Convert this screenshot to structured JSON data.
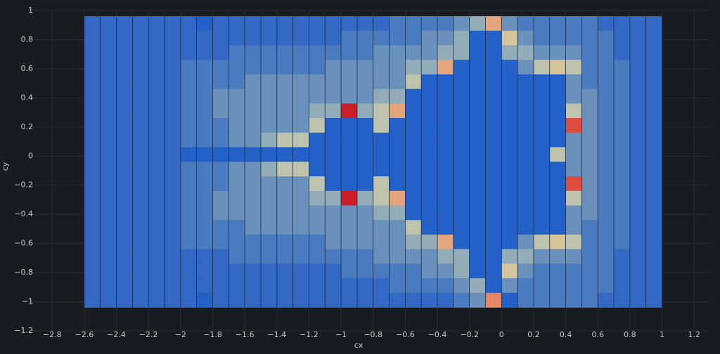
{
  "chart_data": {
    "type": "heatmap",
    "xlabel": "cx",
    "ylabel": "cy",
    "xlim": [
      -2.95,
      1.3
    ],
    "ylim": [
      -1.2,
      1.0
    ],
    "x_ticks": [
      -2.8,
      -2.6,
      -2.4,
      -2.2,
      -2,
      -1.8,
      -1.6,
      -1.4,
      -1.2,
      -1,
      -0.8,
      -0.6,
      -0.4,
      -0.2,
      0,
      0.2,
      0.4,
      0.6,
      0.8,
      1,
      1.2
    ],
    "y_ticks": [
      1,
      0.8,
      0.6,
      0.4,
      0.2,
      0,
      -0.2,
      -0.4,
      -0.6,
      -0.8,
      -1,
      -1.2
    ],
    "grid": true,
    "x_start": -2.55,
    "x_step": 0.1,
    "y_top": 0.96,
    "y_step": 0.2,
    "y_sub_rows": 20,
    "value_scale": "0 = inside set (blue) to 10 = highest (red)",
    "color_scale": [
      "#2361c9",
      "#3369c4",
      "#4a7bbe",
      "#6a91bc",
      "#93adb8",
      "#bdc3ad",
      "#d6c49a",
      "#e3a57c",
      "#e58664",
      "#dc4c40",
      "#c91d28"
    ],
    "columns": [
      {
        "x": -2.55,
        "profile": [
          1,
          1,
          1,
          1,
          1,
          1,
          1,
          1,
          1,
          1,
          1,
          1,
          1,
          1,
          1,
          1,
          1,
          1,
          1,
          1
        ]
      },
      {
        "x": -2.45,
        "profile": [
          1,
          1,
          1,
          1,
          1,
          1,
          1,
          1,
          1,
          1,
          1,
          1,
          1,
          1,
          1,
          1,
          1,
          1,
          1,
          1
        ]
      },
      {
        "x": -2.35,
        "profile": [
          1,
          1,
          1,
          1,
          1,
          1,
          1,
          1,
          1,
          1,
          1,
          1,
          1,
          1,
          1,
          1,
          1,
          1,
          1,
          1
        ]
      },
      {
        "x": -2.25,
        "profile": [
          1,
          1,
          1,
          1,
          1,
          1,
          1,
          1,
          1,
          1,
          1,
          1,
          1,
          1,
          1,
          1,
          1,
          1,
          1,
          1
        ]
      },
      {
        "x": -2.15,
        "profile": [
          1,
          1,
          1,
          1,
          1,
          1,
          1,
          1,
          1,
          1,
          1,
          1,
          1,
          1,
          1,
          1,
          1,
          1,
          1,
          1
        ]
      },
      {
        "x": -2.05,
        "profile": [
          1,
          1,
          1,
          1,
          1,
          1,
          1,
          1,
          1,
          1,
          1,
          1,
          1,
          1,
          1,
          1,
          1,
          1,
          1,
          1
        ]
      },
      {
        "x": -1.95,
        "profile": [
          1,
          1,
          1,
          2,
          2,
          2,
          2,
          2,
          2,
          0,
          2,
          2,
          2,
          2,
          2,
          2,
          1,
          1,
          1,
          1
        ]
      },
      {
        "x": -1.85,
        "profile": [
          0,
          1,
          1,
          2,
          2,
          2,
          2,
          2,
          2,
          0,
          2,
          2,
          2,
          2,
          2,
          2,
          1,
          1,
          1,
          0
        ]
      },
      {
        "x": -1.75,
        "profile": [
          1,
          1,
          1,
          2,
          2,
          3,
          3,
          2,
          2,
          0,
          2,
          2,
          3,
          3,
          2,
          2,
          1,
          1,
          1,
          1
        ]
      },
      {
        "x": -1.65,
        "profile": [
          1,
          1,
          2,
          2,
          2,
          3,
          3,
          3,
          3,
          0,
          3,
          3,
          3,
          3,
          2,
          2,
          2,
          1,
          1,
          1
        ]
      },
      {
        "x": -1.55,
        "profile": [
          1,
          1,
          2,
          2,
          3,
          3,
          3,
          3,
          3,
          0,
          3,
          3,
          3,
          3,
          3,
          2,
          2,
          1,
          1,
          1
        ]
      },
      {
        "x": -1.45,
        "profile": [
          1,
          1,
          2,
          2,
          3,
          3,
          3,
          3,
          4,
          0,
          4,
          3,
          3,
          3,
          3,
          2,
          2,
          1,
          1,
          1
        ]
      },
      {
        "x": -1.35,
        "profile": [
          1,
          1,
          2,
          2,
          3,
          3,
          3,
          3,
          5,
          0,
          5,
          3,
          3,
          3,
          3,
          2,
          2,
          1,
          1,
          1
        ]
      },
      {
        "x": -1.25,
        "profile": [
          1,
          1,
          2,
          2,
          3,
          3,
          3,
          3,
          5,
          0,
          5,
          3,
          3,
          3,
          3,
          2,
          2,
          1,
          1,
          1
        ]
      },
      {
        "x": -1.15,
        "profile": [
          1,
          1,
          2,
          2,
          3,
          3,
          4,
          5,
          0,
          0,
          0,
          5,
          4,
          3,
          3,
          2,
          2,
          1,
          1,
          1
        ]
      },
      {
        "x": -1.05,
        "profile": [
          1,
          1,
          2,
          3,
          3,
          3,
          4,
          0,
          0,
          0,
          0,
          0,
          4,
          3,
          3,
          3,
          2,
          1,
          1,
          1
        ]
      },
      {
        "x": -0.95,
        "profile": [
          1,
          2,
          2,
          3,
          3,
          3,
          10,
          0,
          0,
          0,
          0,
          0,
          10,
          3,
          3,
          3,
          2,
          2,
          1,
          1
        ]
      },
      {
        "x": -0.85,
        "profile": [
          1,
          2,
          2,
          3,
          3,
          3,
          4,
          0,
          0,
          0,
          0,
          0,
          4,
          3,
          3,
          3,
          2,
          2,
          1,
          1
        ]
      },
      {
        "x": -0.75,
        "profile": [
          1,
          2,
          3,
          3,
          3,
          4,
          5,
          5,
          0,
          0,
          0,
          5,
          5,
          4,
          3,
          3,
          3,
          2,
          1,
          1
        ]
      },
      {
        "x": -0.65,
        "profile": [
          2,
          2,
          3,
          3,
          3,
          4,
          7,
          0,
          0,
          0,
          0,
          0,
          7,
          4,
          3,
          3,
          3,
          2,
          2,
          1
        ]
      },
      {
        "x": -0.55,
        "profile": [
          2,
          2,
          3,
          4,
          5,
          0,
          0,
          0,
          0,
          0,
          0,
          0,
          0,
          0,
          5,
          4,
          3,
          2,
          2,
          1
        ]
      },
      {
        "x": -0.45,
        "profile": [
          2,
          3,
          3,
          4,
          0,
          0,
          0,
          0,
          0,
          0,
          0,
          0,
          0,
          0,
          0,
          4,
          3,
          3,
          2,
          1
        ]
      },
      {
        "x": -0.35,
        "profile": [
          2,
          3,
          4,
          7,
          0,
          0,
          0,
          0,
          0,
          0,
          0,
          0,
          0,
          0,
          0,
          7,
          4,
          3,
          2,
          1
        ]
      },
      {
        "x": -0.25,
        "profile": [
          3,
          4,
          4,
          0,
          0,
          0,
          0,
          0,
          0,
          0,
          0,
          0,
          0,
          0,
          0,
          0,
          4,
          4,
          3,
          2
        ]
      },
      {
        "x": -0.15,
        "profile": [
          4,
          0,
          0,
          0,
          0,
          0,
          0,
          0,
          0,
          0,
          0,
          0,
          0,
          0,
          0,
          0,
          0,
          0,
          4,
          3
        ]
      },
      {
        "x": -0.05,
        "profile": [
          7,
          0,
          0,
          0,
          0,
          0,
          0,
          0,
          0,
          0,
          0,
          0,
          0,
          0,
          0,
          0,
          0,
          0,
          0,
          8
        ]
      },
      {
        "x": 0.05,
        "profile": [
          3,
          6,
          4,
          0,
          0,
          0,
          0,
          0,
          0,
          0,
          0,
          0,
          0,
          0,
          0,
          0,
          4,
          6,
          3,
          0
        ]
      },
      {
        "x": 0.15,
        "profile": [
          2,
          3,
          4,
          3,
          0,
          0,
          0,
          0,
          0,
          0,
          0,
          0,
          0,
          0,
          0,
          3,
          4,
          3,
          2,
          2
        ]
      },
      {
        "x": 0.25,
        "profile": [
          2,
          2,
          3,
          5,
          0,
          0,
          0,
          0,
          0,
          0,
          0,
          0,
          0,
          0,
          0,
          5,
          3,
          2,
          2,
          2
        ]
      },
      {
        "x": 0.35,
        "profile": [
          2,
          2,
          3,
          6,
          0,
          0,
          0,
          0,
          0,
          5,
          0,
          0,
          0,
          0,
          0,
          6,
          3,
          2,
          2,
          2
        ]
      },
      {
        "x": 0.45,
        "profile": [
          2,
          2,
          3,
          5,
          3,
          3,
          5,
          9,
          3,
          3,
          3,
          9,
          5,
          3,
          3,
          5,
          3,
          2,
          2,
          2
        ]
      },
      {
        "x": 0.55,
        "profile": [
          2,
          2,
          2,
          2,
          2,
          3,
          3,
          3,
          3,
          3,
          3,
          3,
          3,
          3,
          2,
          2,
          2,
          2,
          2,
          2
        ]
      },
      {
        "x": 0.65,
        "profile": [
          1,
          2,
          2,
          2,
          2,
          2,
          2,
          2,
          2,
          2,
          2,
          2,
          2,
          2,
          2,
          2,
          2,
          2,
          2,
          1
        ]
      },
      {
        "x": 0.75,
        "profile": [
          1,
          1,
          1,
          2,
          2,
          2,
          2,
          2,
          2,
          2,
          2,
          2,
          2,
          2,
          2,
          2,
          1,
          1,
          1,
          1
        ]
      },
      {
        "x": 0.85,
        "profile": [
          1,
          1,
          1,
          1,
          1,
          1,
          1,
          1,
          1,
          1,
          1,
          1,
          1,
          1,
          1,
          1,
          1,
          1,
          1,
          1
        ]
      },
      {
        "x": 0.95,
        "profile": [
          1,
          1,
          1,
          1,
          1,
          1,
          1,
          1,
          1,
          1,
          1,
          1,
          1,
          1,
          1,
          1,
          1,
          1,
          1,
          1
        ]
      }
    ]
  }
}
